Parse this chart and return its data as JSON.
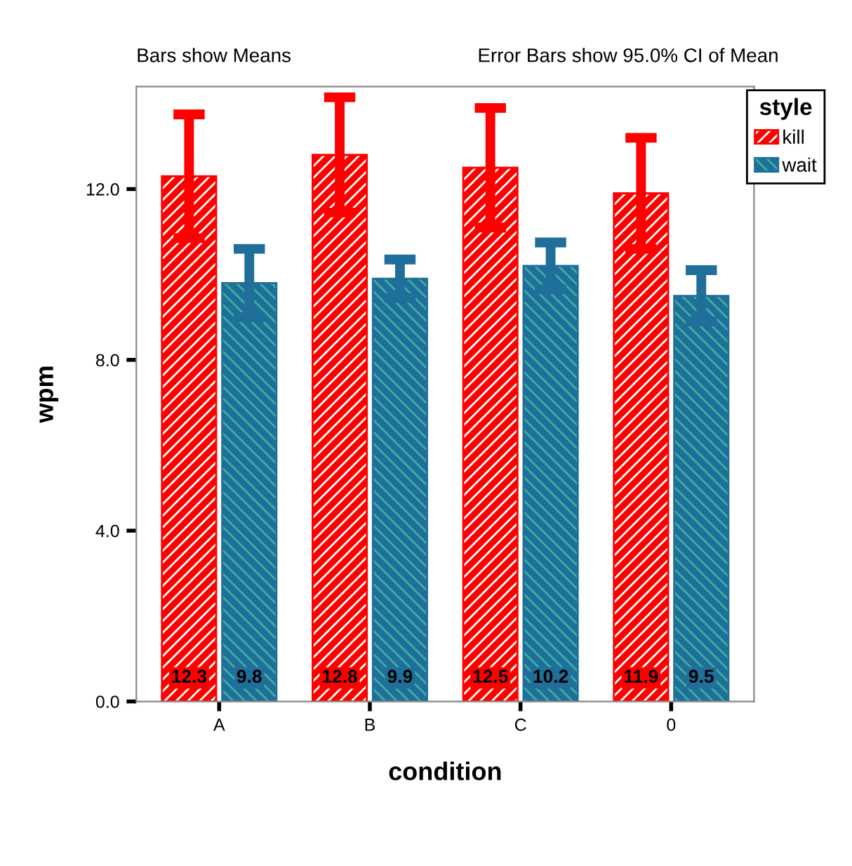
{
  "chart_data": {
    "type": "bar",
    "xlabel": "condition",
    "ylabel": "wpm",
    "legend_title": "style",
    "annotations": [
      "Bars show Means",
      "Error Bars show 95.0% CI of Mean"
    ],
    "categories": [
      "A",
      "B",
      "C",
      "0"
    ],
    "series": [
      {
        "name": "kill",
        "color": "#ff0000",
        "values": [
          12.3,
          12.8,
          12.5,
          11.9
        ],
        "errors": [
          1.45,
          1.35,
          1.4,
          1.3
        ]
      },
      {
        "name": "wait",
        "color": "#1f6f9a",
        "values": [
          9.8,
          9.9,
          10.2,
          9.5
        ],
        "errors": [
          0.8,
          0.45,
          0.55,
          0.6
        ]
      }
    ],
    "ylim": [
      0,
      14.4
    ],
    "yticks": [
      {
        "value": 0,
        "label": "0.0"
      },
      {
        "value": 4,
        "label": "4.0"
      },
      {
        "value": 8,
        "label": "8.0"
      },
      {
        "value": 12,
        "label": "12.0"
      }
    ],
    "data_labels": true,
    "grid": false,
    "legend": "top right"
  }
}
